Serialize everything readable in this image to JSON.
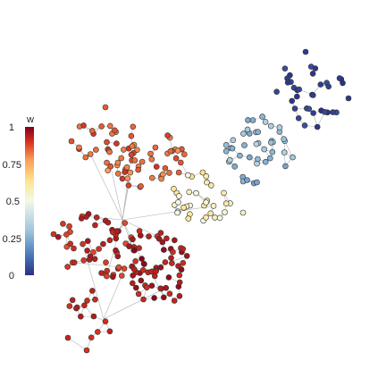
{
  "colorbar": {
    "title": "w",
    "ticks": [
      "1",
      "0.75",
      "0.5",
      "0.25",
      "0"
    ],
    "tick_values": [
      1,
      0.75,
      0.5,
      0.25,
      0
    ],
    "range": [
      0,
      1
    ],
    "colors": [
      "#2b2f86",
      "#4a7bb7",
      "#9cc6dd",
      "#f3f9e7",
      "#fee38d",
      "#fb9b55",
      "#d7301f",
      "#7f0019"
    ]
  },
  "network": {
    "edge_color": "#b3b3b3",
    "node_stroke": "#333333"
  }
}
